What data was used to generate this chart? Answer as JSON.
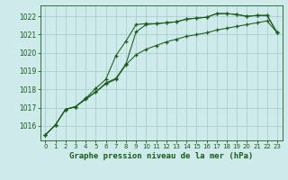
{
  "title": "Graphe pression niveau de la mer (hPa)",
  "bg_color": "#ceeaea",
  "grid_color": "#aacfcf",
  "line_color": "#1a5c1a",
  "x_ticks": [
    0,
    1,
    2,
    3,
    4,
    5,
    6,
    7,
    8,
    9,
    10,
    11,
    12,
    13,
    14,
    15,
    16,
    17,
    18,
    19,
    20,
    21,
    22,
    23
  ],
  "ylim": [
    1015.2,
    1022.6
  ],
  "yticks": [
    1016,
    1017,
    1018,
    1019,
    1020,
    1021,
    1022
  ],
  "series": [
    [
      1015.5,
      1016.05,
      1016.9,
      1017.05,
      1017.5,
      1017.85,
      1018.35,
      1018.6,
      1019.4,
      1021.15,
      1021.55,
      1021.6,
      1021.65,
      1021.7,
      1021.85,
      1021.9,
      1021.95,
      1022.15,
      1022.15,
      1022.1,
      1022.0,
      1022.05,
      1022.05,
      1021.1
    ],
    [
      1015.5,
      1016.05,
      1016.9,
      1017.05,
      1017.5,
      1018.05,
      1018.55,
      1019.85,
      1020.65,
      1021.55,
      1021.6,
      1021.6,
      1021.65,
      1021.7,
      1021.85,
      1021.9,
      1021.95,
      1022.15,
      1022.15,
      1022.1,
      1022.0,
      1022.05,
      1022.05,
      1021.1
    ],
    [
      1015.5,
      1016.05,
      1016.9,
      1017.05,
      1017.45,
      1017.85,
      1018.3,
      1018.55,
      1019.35,
      1019.9,
      1020.2,
      1020.4,
      1020.6,
      1020.75,
      1020.9,
      1021.0,
      1021.1,
      1021.25,
      1021.35,
      1021.45,
      1021.55,
      1021.65,
      1021.75,
      1021.1
    ]
  ]
}
